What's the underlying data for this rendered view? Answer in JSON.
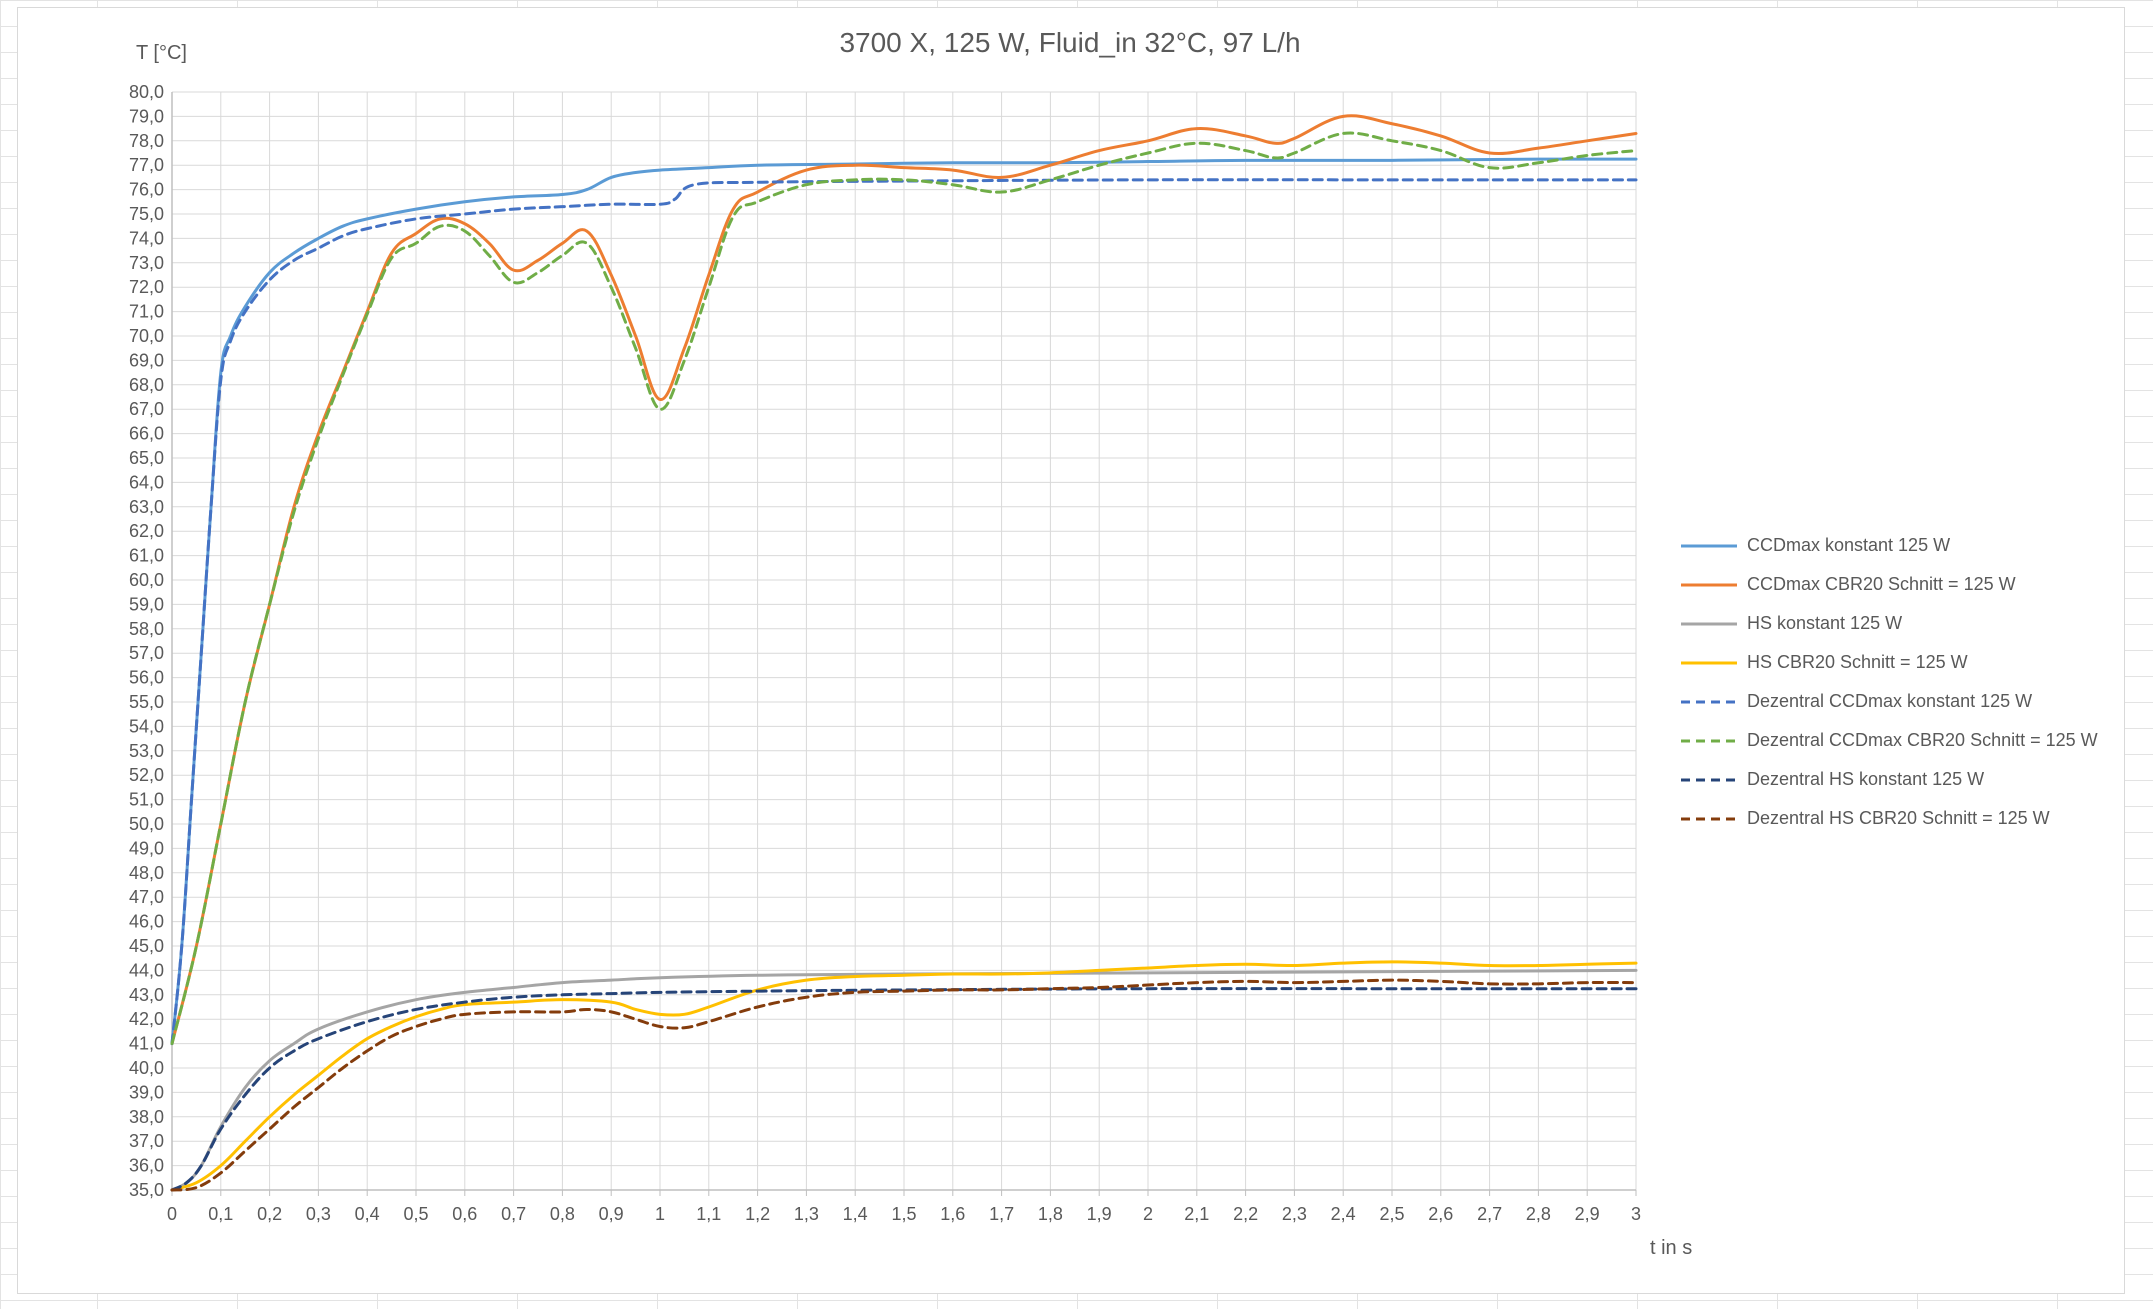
{
  "chart_data": {
    "type": "line",
    "title": "3700 X, 125 W, Fluid_in 32°C, 97 L/h",
    "xlabel": "t in s",
    "ylabel": "T [°C]",
    "xlim": [
      0,
      3
    ],
    "ylim": [
      35,
      80
    ],
    "grid": true,
    "legend_position": "right",
    "x_ticks": [
      "0",
      "0,1",
      "0,2",
      "0,3",
      "0,4",
      "0,5",
      "0,6",
      "0,7",
      "0,8",
      "0,9",
      "1",
      "1,1",
      "1,2",
      "1,3",
      "1,4",
      "1,5",
      "1,6",
      "1,7",
      "1,8",
      "1,9",
      "2",
      "2,1",
      "2,2",
      "2,3",
      "2,4",
      "2,5",
      "2,6",
      "2,7",
      "2,8",
      "2,9",
      "3"
    ],
    "y_ticks": [
      "35,0",
      "36,0",
      "37,0",
      "38,0",
      "39,0",
      "40,0",
      "41,0",
      "42,0",
      "43,0",
      "44,0",
      "45,0",
      "46,0",
      "47,0",
      "48,0",
      "49,0",
      "50,0",
      "51,0",
      "52,0",
      "53,0",
      "54,0",
      "55,0",
      "56,0",
      "57,0",
      "58,0",
      "59,0",
      "60,0",
      "61,0",
      "62,0",
      "63,0",
      "64,0",
      "65,0",
      "66,0",
      "67,0",
      "68,0",
      "69,0",
      "70,0",
      "71,0",
      "72,0",
      "73,0",
      "74,0",
      "75,0",
      "76,0",
      "77,0",
      "78,0",
      "79,0",
      "80,0"
    ],
    "series": [
      {
        "name": "CCDmax konstant 125 W",
        "color": "#5b9bd5",
        "dash": false,
        "points": [
          [
            0,
            41.0
          ],
          [
            0.02,
            45
          ],
          [
            0.04,
            51
          ],
          [
            0.06,
            57
          ],
          [
            0.08,
            63
          ],
          [
            0.1,
            68.5
          ],
          [
            0.12,
            70.0
          ],
          [
            0.15,
            71.2
          ],
          [
            0.2,
            72.6
          ],
          [
            0.25,
            73.4
          ],
          [
            0.3,
            74.0
          ],
          [
            0.35,
            74.5
          ],
          [
            0.4,
            74.8
          ],
          [
            0.5,
            75.2
          ],
          [
            0.6,
            75.5
          ],
          [
            0.7,
            75.7
          ],
          [
            0.8,
            75.8
          ],
          [
            0.85,
            76.0
          ],
          [
            0.9,
            76.5
          ],
          [
            0.95,
            76.7
          ],
          [
            1.0,
            76.8
          ],
          [
            1.1,
            76.9
          ],
          [
            1.2,
            77.0
          ],
          [
            1.4,
            77.05
          ],
          [
            1.6,
            77.1
          ],
          [
            1.8,
            77.1
          ],
          [
            2.0,
            77.15
          ],
          [
            2.2,
            77.2
          ],
          [
            2.5,
            77.2
          ],
          [
            2.8,
            77.25
          ],
          [
            3.0,
            77.25
          ]
        ]
      },
      {
        "name": "CCDmax CBR20 Schnitt = 125 W",
        "color": "#ed7d31",
        "dash": false,
        "points": [
          [
            0,
            41.0
          ],
          [
            0.05,
            45
          ],
          [
            0.1,
            50
          ],
          [
            0.15,
            55
          ],
          [
            0.2,
            59
          ],
          [
            0.25,
            63
          ],
          [
            0.3,
            66
          ],
          [
            0.35,
            68.5
          ],
          [
            0.4,
            71
          ],
          [
            0.45,
            73.4
          ],
          [
            0.5,
            74.2
          ],
          [
            0.55,
            74.8
          ],
          [
            0.6,
            74.6
          ],
          [
            0.65,
            73.8
          ],
          [
            0.7,
            72.7
          ],
          [
            0.75,
            73.1
          ],
          [
            0.8,
            73.8
          ],
          [
            0.85,
            74.3
          ],
          [
            0.9,
            72.5
          ],
          [
            0.95,
            70.0
          ],
          [
            1.0,
            67.4
          ],
          [
            1.05,
            69.5
          ],
          [
            1.1,
            72.5
          ],
          [
            1.15,
            75.2
          ],
          [
            1.2,
            75.9
          ],
          [
            1.3,
            76.8
          ],
          [
            1.4,
            77.0
          ],
          [
            1.5,
            76.9
          ],
          [
            1.6,
            76.8
          ],
          [
            1.7,
            76.5
          ],
          [
            1.8,
            77.0
          ],
          [
            1.9,
            77.6
          ],
          [
            2.0,
            78.0
          ],
          [
            2.1,
            78.5
          ],
          [
            2.2,
            78.2
          ],
          [
            2.26,
            77.9
          ],
          [
            2.3,
            78.1
          ],
          [
            2.4,
            79.0
          ],
          [
            2.5,
            78.7
          ],
          [
            2.6,
            78.2
          ],
          [
            2.7,
            77.5
          ],
          [
            2.8,
            77.7
          ],
          [
            2.9,
            78.0
          ],
          [
            3.0,
            78.3
          ]
        ]
      },
      {
        "name": "HS konstant 125 W",
        "color": "#a5a5a5",
        "dash": false,
        "points": [
          [
            0,
            35.0
          ],
          [
            0.03,
            35.3
          ],
          [
            0.06,
            36.0
          ],
          [
            0.1,
            37.6
          ],
          [
            0.15,
            39.2
          ],
          [
            0.2,
            40.3
          ],
          [
            0.25,
            41.0
          ],
          [
            0.3,
            41.6
          ],
          [
            0.4,
            42.3
          ],
          [
            0.5,
            42.8
          ],
          [
            0.6,
            43.1
          ],
          [
            0.7,
            43.3
          ],
          [
            0.8,
            43.5
          ],
          [
            0.9,
            43.6
          ],
          [
            1.0,
            43.7
          ],
          [
            1.2,
            43.8
          ],
          [
            1.5,
            43.85
          ],
          [
            2.0,
            43.9
          ],
          [
            2.5,
            43.95
          ],
          [
            3.0,
            44.0
          ]
        ]
      },
      {
        "name": "HS CBR20 Schnitt = 125 W",
        "color": "#ffc000",
        "dash": false,
        "points": [
          [
            0,
            35.0
          ],
          [
            0.05,
            35.3
          ],
          [
            0.1,
            36.0
          ],
          [
            0.15,
            37.0
          ],
          [
            0.2,
            38.0
          ],
          [
            0.25,
            38.9
          ],
          [
            0.3,
            39.7
          ],
          [
            0.35,
            40.5
          ],
          [
            0.4,
            41.2
          ],
          [
            0.45,
            41.7
          ],
          [
            0.5,
            42.1
          ],
          [
            0.55,
            42.4
          ],
          [
            0.6,
            42.6
          ],
          [
            0.7,
            42.7
          ],
          [
            0.8,
            42.8
          ],
          [
            0.9,
            42.7
          ],
          [
            0.95,
            42.4
          ],
          [
            1.0,
            42.2
          ],
          [
            1.05,
            42.2
          ],
          [
            1.1,
            42.5
          ],
          [
            1.2,
            43.2
          ],
          [
            1.3,
            43.6
          ],
          [
            1.4,
            43.75
          ],
          [
            1.5,
            43.8
          ],
          [
            1.6,
            43.85
          ],
          [
            1.7,
            43.85
          ],
          [
            1.8,
            43.9
          ],
          [
            1.9,
            44.0
          ],
          [
            2.0,
            44.1
          ],
          [
            2.1,
            44.2
          ],
          [
            2.2,
            44.25
          ],
          [
            2.3,
            44.2
          ],
          [
            2.4,
            44.3
          ],
          [
            2.5,
            44.35
          ],
          [
            2.6,
            44.3
          ],
          [
            2.7,
            44.2
          ],
          [
            2.8,
            44.2
          ],
          [
            2.9,
            44.25
          ],
          [
            3.0,
            44.3
          ]
        ]
      },
      {
        "name": "Dezentral CCDmax konstant 125 W",
        "color": "#4472c4",
        "dash": true,
        "points": [
          [
            0,
            41.0
          ],
          [
            0.02,
            45
          ],
          [
            0.04,
            51
          ],
          [
            0.06,
            57
          ],
          [
            0.08,
            63
          ],
          [
            0.1,
            68.2
          ],
          [
            0.12,
            69.8
          ],
          [
            0.15,
            71.0
          ],
          [
            0.2,
            72.3
          ],
          [
            0.25,
            73.1
          ],
          [
            0.3,
            73.6
          ],
          [
            0.35,
            74.1
          ],
          [
            0.4,
            74.4
          ],
          [
            0.5,
            74.8
          ],
          [
            0.6,
            75.0
          ],
          [
            0.7,
            75.2
          ],
          [
            0.8,
            75.3
          ],
          [
            0.9,
            75.4
          ],
          [
            1.0,
            75.4
          ],
          [
            1.03,
            75.6
          ],
          [
            1.07,
            76.2
          ],
          [
            1.2,
            76.3
          ],
          [
            1.5,
            76.35
          ],
          [
            2.0,
            76.4
          ],
          [
            2.5,
            76.4
          ],
          [
            3.0,
            76.4
          ]
        ]
      },
      {
        "name": "Dezentral CCDmax CBR20 Schnitt = 125 W",
        "color": "#70ad47",
        "dash": true,
        "points": [
          [
            0,
            41.0
          ],
          [
            0.05,
            45
          ],
          [
            0.1,
            50
          ],
          [
            0.15,
            55
          ],
          [
            0.2,
            59
          ],
          [
            0.25,
            62.8
          ],
          [
            0.3,
            65.8
          ],
          [
            0.35,
            68.4
          ],
          [
            0.4,
            70.9
          ],
          [
            0.45,
            73.2
          ],
          [
            0.5,
            73.8
          ],
          [
            0.55,
            74.5
          ],
          [
            0.6,
            74.3
          ],
          [
            0.65,
            73.3
          ],
          [
            0.7,
            72.2
          ],
          [
            0.75,
            72.6
          ],
          [
            0.8,
            73.3
          ],
          [
            0.85,
            73.8
          ],
          [
            0.9,
            72.0
          ],
          [
            0.95,
            69.5
          ],
          [
            1.0,
            67.0
          ],
          [
            1.05,
            69.0
          ],
          [
            1.1,
            72.0
          ],
          [
            1.15,
            74.9
          ],
          [
            1.2,
            75.5
          ],
          [
            1.3,
            76.2
          ],
          [
            1.4,
            76.4
          ],
          [
            1.5,
            76.4
          ],
          [
            1.6,
            76.2
          ],
          [
            1.7,
            75.9
          ],
          [
            1.8,
            76.4
          ],
          [
            1.9,
            77.0
          ],
          [
            2.0,
            77.5
          ],
          [
            2.1,
            77.9
          ],
          [
            2.2,
            77.6
          ],
          [
            2.26,
            77.3
          ],
          [
            2.3,
            77.5
          ],
          [
            2.4,
            78.3
          ],
          [
            2.5,
            78.0
          ],
          [
            2.6,
            77.6
          ],
          [
            2.7,
            76.9
          ],
          [
            2.8,
            77.1
          ],
          [
            2.9,
            77.4
          ],
          [
            3.0,
            77.6
          ]
        ]
      },
      {
        "name": "Dezentral HS konstant 125 W",
        "color": "#264478",
        "dash": true,
        "points": [
          [
            0,
            35.0
          ],
          [
            0.03,
            35.3
          ],
          [
            0.06,
            36.0
          ],
          [
            0.1,
            37.5
          ],
          [
            0.15,
            38.9
          ],
          [
            0.2,
            40.0
          ],
          [
            0.25,
            40.7
          ],
          [
            0.3,
            41.2
          ],
          [
            0.4,
            41.9
          ],
          [
            0.5,
            42.4
          ],
          [
            0.6,
            42.7
          ],
          [
            0.7,
            42.9
          ],
          [
            0.8,
            43.0
          ],
          [
            0.9,
            43.05
          ],
          [
            1.0,
            43.1
          ],
          [
            1.2,
            43.15
          ],
          [
            1.5,
            43.2
          ],
          [
            2.0,
            43.25
          ],
          [
            2.5,
            43.25
          ],
          [
            3.0,
            43.25
          ]
        ]
      },
      {
        "name": "Dezentral HS CBR20 Schnitt = 125 W",
        "color": "#843c0c",
        "dash": true,
        "points": [
          [
            0,
            35.0
          ],
          [
            0.05,
            35.1
          ],
          [
            0.1,
            35.7
          ],
          [
            0.15,
            36.6
          ],
          [
            0.2,
            37.5
          ],
          [
            0.25,
            38.4
          ],
          [
            0.3,
            39.2
          ],
          [
            0.35,
            40.0
          ],
          [
            0.4,
            40.7
          ],
          [
            0.45,
            41.3
          ],
          [
            0.5,
            41.7
          ],
          [
            0.55,
            42.0
          ],
          [
            0.6,
            42.2
          ],
          [
            0.7,
            42.3
          ],
          [
            0.8,
            42.3
          ],
          [
            0.85,
            42.4
          ],
          [
            0.9,
            42.3
          ],
          [
            0.95,
            42.0
          ],
          [
            1.0,
            41.7
          ],
          [
            1.05,
            41.65
          ],
          [
            1.1,
            41.9
          ],
          [
            1.2,
            42.5
          ],
          [
            1.3,
            42.9
          ],
          [
            1.4,
            43.1
          ],
          [
            1.5,
            43.15
          ],
          [
            1.6,
            43.2
          ],
          [
            1.7,
            43.2
          ],
          [
            1.8,
            43.25
          ],
          [
            1.9,
            43.3
          ],
          [
            2.0,
            43.4
          ],
          [
            2.1,
            43.5
          ],
          [
            2.2,
            43.55
          ],
          [
            2.3,
            43.5
          ],
          [
            2.4,
            43.55
          ],
          [
            2.5,
            43.6
          ],
          [
            2.6,
            43.55
          ],
          [
            2.7,
            43.45
          ],
          [
            2.8,
            43.45
          ],
          [
            2.9,
            43.5
          ],
          [
            3.0,
            43.5
          ]
        ]
      }
    ]
  }
}
